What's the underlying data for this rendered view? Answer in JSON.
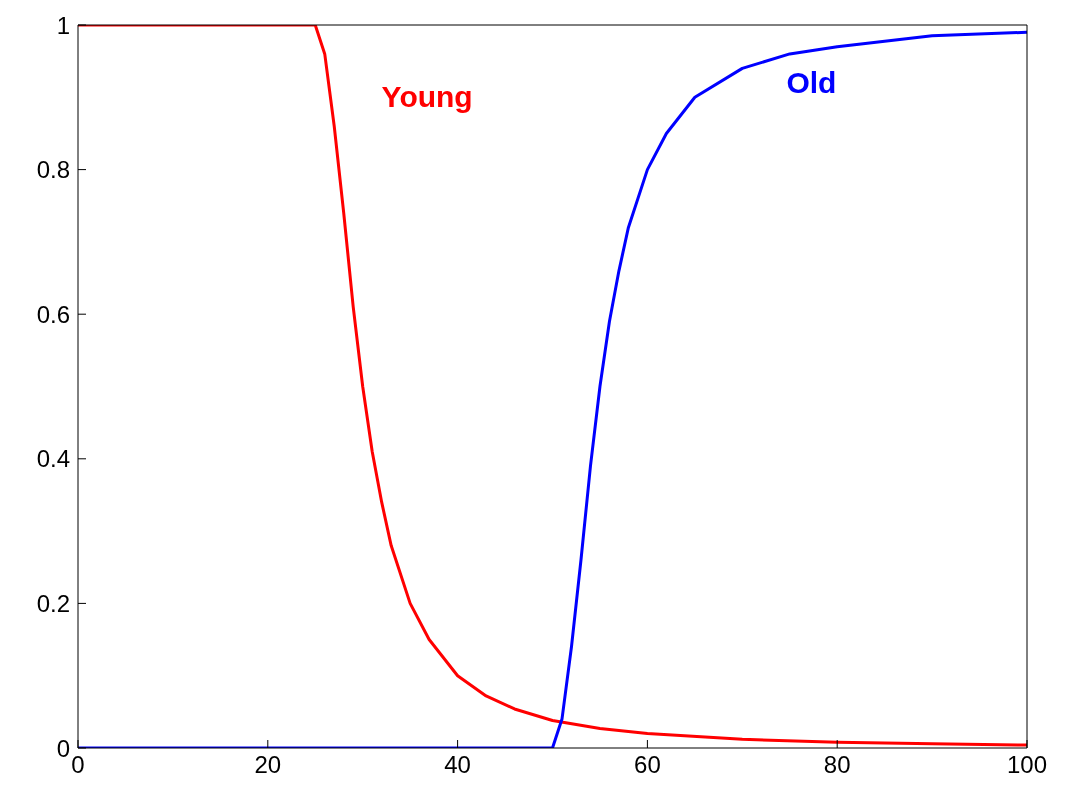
{
  "chart_data": {
    "type": "line",
    "xlim": [
      0,
      100
    ],
    "ylim": [
      0,
      1
    ],
    "xticks": [
      0,
      20,
      40,
      60,
      80,
      100
    ],
    "yticks": [
      0,
      0.2,
      0.4,
      0.6,
      0.8,
      1
    ],
    "grid": false,
    "legend": false,
    "marker": "none",
    "line_style": "solid",
    "series": [
      {
        "name": "Young",
        "color": "#ff0000",
        "x": [
          0,
          25,
          26,
          27,
          28,
          29,
          30,
          31,
          32,
          33,
          35,
          37,
          40,
          43,
          46,
          50,
          55,
          60,
          70,
          80,
          90,
          100
        ],
        "values": [
          1,
          1,
          0.96,
          0.86,
          0.74,
          0.61,
          0.5,
          0.41,
          0.34,
          0.28,
          0.2,
          0.15,
          0.1,
          0.072,
          0.054,
          0.038,
          0.027,
          0.02,
          0.012,
          0.008,
          0.006,
          0.004
        ]
      },
      {
        "name": "Old",
        "color": "#0000ff",
        "x": [
          0,
          50,
          51,
          52,
          53,
          54,
          55,
          56,
          57,
          58,
          60,
          62,
          65,
          70,
          75,
          80,
          90,
          100
        ],
        "values": [
          0,
          0,
          0.04,
          0.14,
          0.26,
          0.39,
          0.5,
          0.59,
          0.66,
          0.72,
          0.8,
          0.85,
          0.9,
          0.94,
          0.96,
          0.97,
          0.985,
          0.99
        ]
      }
    ]
  }
}
